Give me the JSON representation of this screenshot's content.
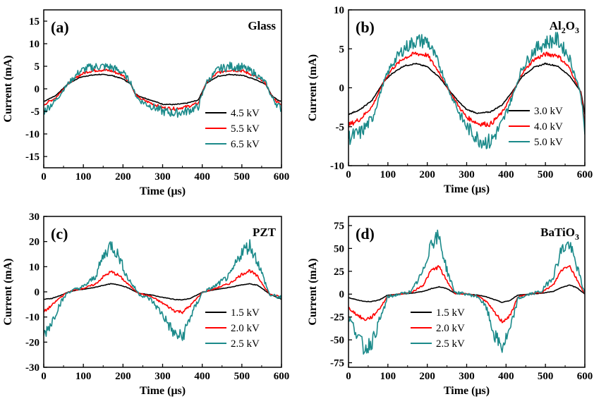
{
  "chart_data": [
    {
      "type": "line",
      "panel_label": "(a)",
      "material": "Glass",
      "material_base": "Glass",
      "material_sub": "",
      "material_tail": "",
      "xlabel": "Time (μs)",
      "ylabel": "Current (mA)",
      "xlim": [
        0,
        600
      ],
      "ylim": [
        -17.5,
        17.5
      ],
      "xticks": [
        "0",
        "100",
        "200",
        "300",
        "400",
        "500",
        "600"
      ],
      "yticks": [
        "-15",
        "-10",
        "-5",
        "0",
        "5",
        "10",
        "15"
      ],
      "legend_position": "bottom-right",
      "series": [
        {
          "name": "4.5 kV",
          "color": "#000000",
          "x": [
            0,
            30,
            60,
            90,
            110,
            140,
            170,
            200,
            220,
            230,
            240,
            260,
            300,
            330,
            360,
            390,
            410,
            440,
            470,
            500,
            530,
            560,
            575,
            590,
            600
          ],
          "y": [
            -2.8,
            -1.5,
            1.0,
            2.5,
            2.9,
            3.2,
            3.0,
            2.2,
            1.0,
            -1.0,
            -1.6,
            -2.2,
            -3.4,
            -3.5,
            -3.2,
            -2.5,
            1.2,
            2.8,
            3.2,
            3.0,
            2.2,
            1.0,
            -1.4,
            -2.5,
            -2.8
          ]
        },
        {
          "name": "5.5 kV",
          "color": "#ff0000",
          "x": [
            0,
            30,
            60,
            90,
            110,
            140,
            170,
            200,
            220,
            230,
            240,
            260,
            300,
            330,
            360,
            390,
            410,
            440,
            470,
            500,
            530,
            560,
            575,
            590,
            600
          ],
          "y": [
            -3.5,
            -2.0,
            1.0,
            3.0,
            3.8,
            4.2,
            4.0,
            3.0,
            1.2,
            -1.0,
            -2.0,
            -2.8,
            -4.2,
            -4.4,
            -4.0,
            -3.2,
            1.3,
            3.6,
            4.2,
            4.0,
            3.0,
            1.2,
            -1.6,
            -3.0,
            -3.6
          ]
        },
        {
          "name": "6.5 kV",
          "color": "#1b8a8a",
          "x": [
            0,
            30,
            60,
            90,
            110,
            140,
            170,
            200,
            220,
            230,
            240,
            260,
            300,
            330,
            360,
            390,
            410,
            440,
            470,
            500,
            530,
            560,
            575,
            590,
            600
          ],
          "y": [
            -5.0,
            -2.6,
            1.0,
            3.8,
            4.6,
            5.0,
            4.8,
            3.6,
            1.4,
            -1.0,
            -2.4,
            -3.4,
            -5.0,
            -5.4,
            -5.0,
            -4.0,
            1.4,
            4.3,
            5.0,
            4.8,
            3.6,
            1.4,
            -1.8,
            -3.6,
            -4.4
          ]
        }
      ]
    },
    {
      "type": "line",
      "panel_label": "(b)",
      "material": "Al2O3",
      "material_base": "Al",
      "material_sub": "2",
      "material_tail": "O",
      "material_sub2": "3",
      "xlabel": "Time (μs)",
      "ylabel": "Current (mA)",
      "xlim": [
        0,
        600
      ],
      "ylim": [
        -10,
        10
      ],
      "xticks": [
        "0",
        "100",
        "200",
        "300",
        "400",
        "500",
        "600"
      ],
      "yticks": [
        "-10",
        "-5",
        "0",
        "5",
        "10"
      ],
      "legend_position": "bottom-right",
      "series": [
        {
          "name": "3.0 kV",
          "color": "#000000",
          "x": [
            0,
            30,
            60,
            90,
            110,
            140,
            170,
            200,
            230,
            260,
            270,
            280,
            300,
            330,
            360,
            390,
            420,
            440,
            470,
            500,
            530,
            560,
            590,
            600
          ],
          "y": [
            -3.4,
            -2.8,
            -1.6,
            0.8,
            1.8,
            2.8,
            3.1,
            2.7,
            1.4,
            -0.6,
            -1.2,
            -1.8,
            -2.8,
            -3.3,
            -3.1,
            -2.2,
            -0.2,
            1.4,
            2.6,
            3.1,
            2.8,
            1.6,
            -0.5,
            -3.4
          ]
        },
        {
          "name": "4.0 kV",
          "color": "#ff0000",
          "x": [
            0,
            30,
            60,
            90,
            110,
            140,
            170,
            200,
            230,
            260,
            270,
            280,
            300,
            330,
            360,
            390,
            420,
            440,
            470,
            500,
            530,
            560,
            590,
            600
          ],
          "y": [
            -4.8,
            -4.0,
            -2.4,
            0.8,
            2.4,
            3.8,
            4.4,
            4.2,
            2.0,
            -0.8,
            -1.5,
            -2.4,
            -3.8,
            -4.6,
            -4.7,
            -3.2,
            -0.4,
            1.8,
            3.6,
            4.3,
            4.2,
            2.6,
            -0.6,
            -4.6
          ]
        },
        {
          "name": "5.0 kV",
          "color": "#1b8a8a",
          "x": [
            0,
            30,
            60,
            90,
            110,
            140,
            170,
            200,
            230,
            260,
            270,
            280,
            300,
            330,
            360,
            390,
            420,
            440,
            470,
            500,
            530,
            560,
            590,
            600
          ],
          "y": [
            -6.4,
            -5.8,
            -4.0,
            0.8,
            3.0,
            5.0,
            6.0,
            6.0,
            3.0,
            -1.0,
            -1.8,
            -3.2,
            -5.0,
            -6.6,
            -7.0,
            -4.6,
            -0.6,
            2.4,
            4.8,
            5.8,
            6.2,
            4.0,
            -0.8,
            -6.0
          ]
        }
      ]
    },
    {
      "type": "line",
      "panel_label": "(c)",
      "material": "PZT",
      "material_base": "PZT",
      "material_sub": "",
      "material_tail": "",
      "xlabel": "Time (μs)",
      "ylabel": "Current (mA)",
      "xlim": [
        0,
        600
      ],
      "ylim": [
        -30,
        30
      ],
      "xticks": [
        "0",
        "100",
        "200",
        "300",
        "400",
        "500",
        "600"
      ],
      "yticks": [
        "-30",
        "-20",
        "-10",
        "0",
        "10",
        "20",
        "30"
      ],
      "legend_position": "bottom-right",
      "series": [
        {
          "name": "1.5 kV",
          "color": "#000000",
          "x": [
            0,
            20,
            40,
            60,
            80,
            100,
            130,
            150,
            170,
            190,
            210,
            240,
            270,
            300,
            330,
            350,
            370,
            400,
            430,
            470,
            500,
            520,
            540,
            570,
            600
          ],
          "y": [
            -3.0,
            -2.6,
            -1.6,
            -0.2,
            0.6,
            1.0,
            1.8,
            2.6,
            3.2,
            2.8,
            1.8,
            -0.6,
            -1.2,
            -2.2,
            -3.0,
            -3.2,
            -2.6,
            -0.2,
            0.8,
            1.8,
            2.8,
            3.2,
            2.6,
            -0.8,
            -3.0
          ]
        },
        {
          "name": "2.0 kV",
          "color": "#ff0000",
          "x": [
            0,
            20,
            40,
            60,
            80,
            100,
            130,
            150,
            170,
            190,
            210,
            240,
            270,
            300,
            330,
            350,
            370,
            400,
            430,
            470,
            500,
            520,
            540,
            570,
            600
          ],
          "y": [
            -8.0,
            -5.5,
            -2.4,
            -0.2,
            0.8,
            1.4,
            3.0,
            6.0,
            8.0,
            6.5,
            3.4,
            -0.6,
            -1.8,
            -4.5,
            -7.5,
            -8.0,
            -5.5,
            -0.2,
            1.2,
            3.4,
            7.0,
            8.5,
            6.0,
            -1.0,
            -2.0
          ]
        },
        {
          "name": "2.5 kV",
          "color": "#1b8a8a",
          "x": [
            0,
            20,
            40,
            60,
            80,
            100,
            130,
            150,
            170,
            190,
            210,
            240,
            270,
            300,
            330,
            350,
            370,
            400,
            430,
            470,
            500,
            520,
            540,
            570,
            600
          ],
          "y": [
            -17.0,
            -12.0,
            -5.0,
            -0.3,
            1.0,
            2.0,
            6.0,
            14.0,
            19.0,
            14.0,
            6.0,
            -0.8,
            -3.0,
            -9.0,
            -17.0,
            -18.0,
            -10.0,
            -0.3,
            2.0,
            6.5,
            16.0,
            18.5,
            12.0,
            -1.2,
            -2.4
          ]
        }
      ]
    },
    {
      "type": "line",
      "panel_label": "(d)",
      "material": "BaTiO3",
      "material_base": "BaTiO",
      "material_sub": "3",
      "material_tail": "",
      "xlabel": "Time (μs)",
      "ylabel": "Current (mA)",
      "xlim": [
        0,
        600
      ],
      "ylim": [
        -80,
        85
      ],
      "xticks": [
        "0",
        "100",
        "200",
        "300",
        "400",
        "500",
        "600"
      ],
      "yticks": [
        "-75",
        "-50",
        "-25",
        "0",
        "25",
        "50",
        "75"
      ],
      "legend_position": "bottom-left",
      "series": [
        {
          "name": "1.5 kV",
          "color": "#000000",
          "x": [
            0,
            20,
            40,
            60,
            80,
            100,
            130,
            160,
            190,
            210,
            230,
            250,
            270,
            300,
            330,
            350,
            370,
            390,
            410,
            430,
            460,
            490,
            520,
            540,
            560,
            580,
            600
          ],
          "y": [
            -4,
            -6,
            -8,
            -8,
            -6,
            -1,
            0,
            1,
            3,
            6,
            8,
            6,
            1,
            0,
            -1,
            -3,
            -6,
            -9,
            -7,
            -1,
            0,
            1,
            3,
            7,
            10,
            7,
            0
          ]
        },
        {
          "name": "2.0 kV",
          "color": "#ff0000",
          "x": [
            0,
            20,
            40,
            60,
            80,
            100,
            130,
            160,
            190,
            210,
            230,
            250,
            270,
            300,
            330,
            350,
            370,
            390,
            410,
            430,
            460,
            490,
            520,
            540,
            560,
            580,
            600
          ],
          "y": [
            -15,
            -22,
            -28,
            -25,
            -15,
            -2,
            0,
            2,
            10,
            26,
            30,
            14,
            1,
            0,
            -2,
            -8,
            -20,
            -30,
            -24,
            -3,
            0,
            2,
            10,
            26,
            32,
            16,
            0
          ]
        },
        {
          "name": "2.5 kV",
          "color": "#1b8a8a",
          "x": [
            0,
            20,
            40,
            60,
            80,
            100,
            130,
            160,
            190,
            210,
            230,
            250,
            270,
            300,
            330,
            350,
            370,
            390,
            410,
            430,
            460,
            490,
            520,
            540,
            560,
            580,
            600
          ],
          "y": [
            -25,
            -42,
            -60,
            -52,
            -28,
            -3,
            0,
            3,
            25,
            58,
            62,
            26,
            2,
            0,
            -3,
            -15,
            -45,
            -58,
            -40,
            -5,
            0,
            3,
            20,
            48,
            55,
            30,
            0
          ]
        }
      ]
    }
  ]
}
